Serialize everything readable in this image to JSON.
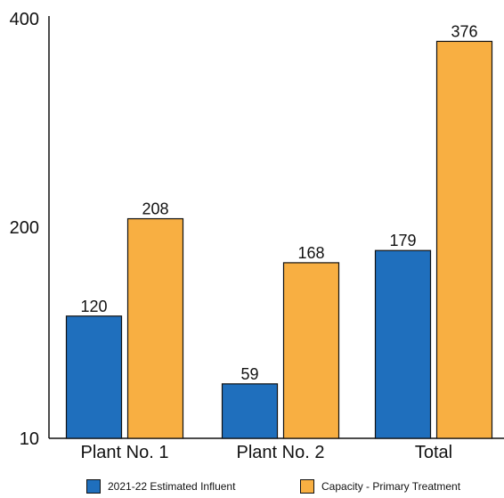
{
  "chart_data": {
    "type": "bar",
    "categories": [
      "Plant No. 1",
      "Plant No. 2",
      "Total"
    ],
    "series": [
      {
        "name": "2021-22 Estimated Influent",
        "values": [
          120,
          59,
          179
        ],
        "color": "#1f6fbd"
      },
      {
        "name": "Capacity - Primary Treatment",
        "values": [
          208,
          168,
          376
        ],
        "color": "#f8af42"
      }
    ],
    "yscale": "log",
    "ylim": [
      10,
      400
    ],
    "yticks": [
      "10",
      "200",
      "400"
    ],
    "data_labels": [
      [
        "120",
        "59",
        "179"
      ],
      [
        "208",
        "168",
        "376"
      ]
    ],
    "legend_position": "bottom",
    "grid": false
  }
}
